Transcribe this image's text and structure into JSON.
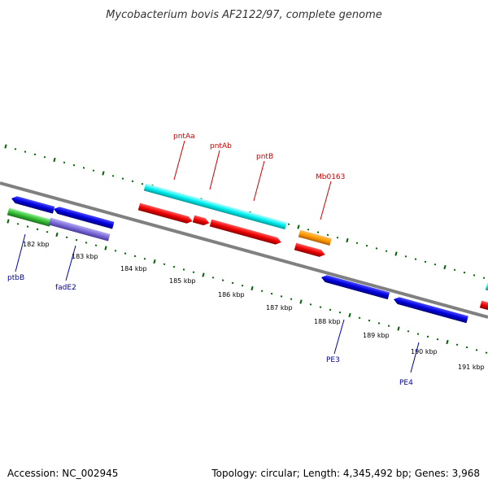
{
  "title": "Mycobacterium bovis AF2122/97, complete genome",
  "footer": {
    "accession": "Accession: NC_002945",
    "topology": "Topology: circular; Length: 4,345,492 bp; Genes: 3,968"
  },
  "colors": {
    "backbone": "#808080",
    "tick": "#006400",
    "forward_label": "#cc0000",
    "reverse_label": "#0000aa",
    "gene_blue": "#0000dd",
    "gene_red": "#ee0000",
    "gene_cyan": "#00eeee",
    "gene_orange": "#ff9900",
    "gene_green": "#33bb33",
    "gene_purple": "#7a6ad8"
  },
  "scale_labels": [
    "182 kbp",
    "183 kbp",
    "184 kbp",
    "185 kbp",
    "186 kbp",
    "187 kbp",
    "188 kbp",
    "189 kbp",
    "190 kbp",
    "191 kbp"
  ],
  "genes": [
    {
      "label": "pntAa",
      "color": "#ee0000",
      "strand": "+"
    },
    {
      "label": "pntAb",
      "color": "#ee0000",
      "strand": "+"
    },
    {
      "label": "pntB",
      "color": "#ee0000",
      "strand": "+"
    },
    {
      "label": "Mb0163",
      "color": "#ee0000",
      "strand": "+"
    },
    {
      "label": "ptbB",
      "color": "#0000dd",
      "strand": "-"
    },
    {
      "label": "fadE2",
      "color": "#0000dd",
      "strand": "-"
    },
    {
      "label": "PE3",
      "color": "#0000dd",
      "strand": "-"
    },
    {
      "label": "PE4",
      "color": "#0000dd",
      "strand": "-"
    }
  ]
}
